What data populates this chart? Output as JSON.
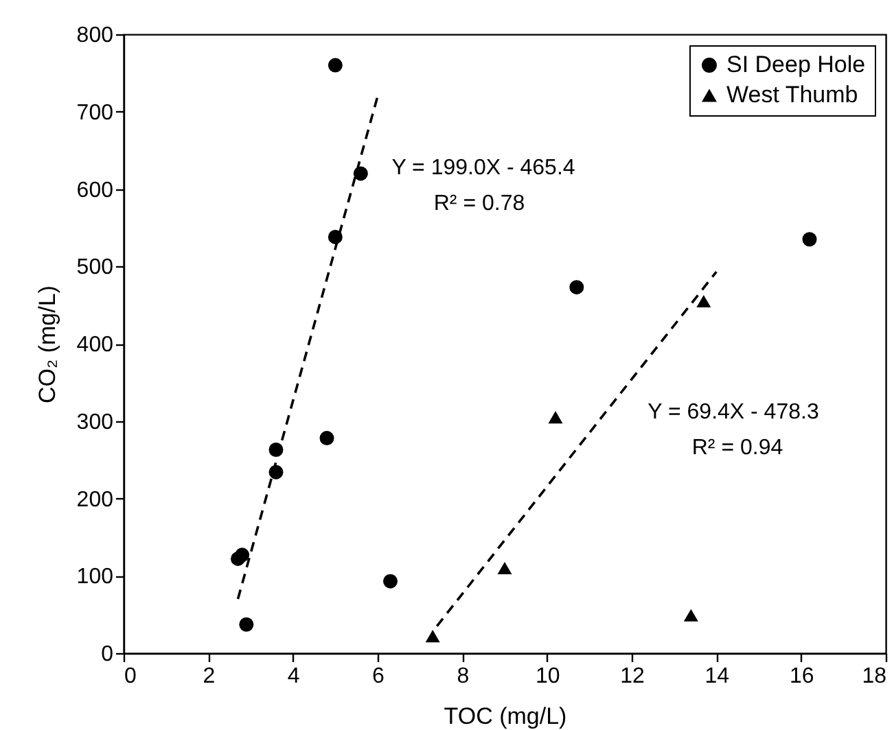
{
  "chart_data": {
    "type": "scatter",
    "xlabel": "TOC (mg/L)",
    "ylabel": "CO₂ (mg/L)",
    "xlim": [
      0,
      18
    ],
    "ylim": [
      0,
      800
    ],
    "xticks": [
      0,
      2,
      4,
      6,
      8,
      10,
      12,
      14,
      16,
      18
    ],
    "yticks": [
      0,
      100,
      200,
      300,
      400,
      500,
      600,
      700,
      800
    ],
    "grid": false,
    "legend": "top right",
    "series": [
      {
        "name": "SI Deep Hole",
        "marker": "circle",
        "color": "#000000",
        "x": [
          5.0,
          5.6,
          5.0,
          3.6,
          3.6,
          4.8,
          2.7,
          2.8,
          2.9,
          6.3,
          10.7,
          16.2
        ],
        "values": [
          760,
          620,
          538,
          263,
          234,
          278,
          122,
          127,
          37,
          93,
          473,
          535
        ]
      },
      {
        "name": "West Thumb",
        "marker": "triangle",
        "color": "#000000",
        "x": [
          7.3,
          9.0,
          10.2,
          13.4,
          13.7
        ],
        "values": [
          22,
          110,
          305,
          49,
          455
        ]
      },
      {
        "type": "line",
        "line_style": "dashed",
        "color": "#000000",
        "x": [
          2.7,
          6.0
        ],
        "values": [
          70,
          720
        ]
      },
      {
        "type": "line",
        "line_style": "dashed",
        "color": "#000000",
        "x": [
          7.4,
          14.0
        ],
        "values": [
          35,
          493
        ]
      }
    ],
    "annotations": [
      "Y = 199.0X - 465.4",
      "R² = 0.78",
      "Y = 69.4X - 478.3",
      "R² = 0.94"
    ]
  }
}
